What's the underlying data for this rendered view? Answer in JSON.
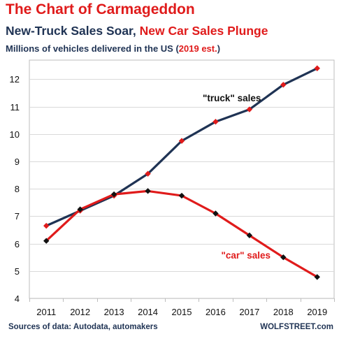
{
  "chart_data": {
    "type": "line",
    "title": "The Chart of Carmageddon",
    "subtitle_part1": "New-Truck Sales Soar, ",
    "subtitle_part2": "New Car Sales Plunge",
    "units_part1": "Millions of vehicles delivered in the US (",
    "units_part2": "2019 est.",
    "units_part3": ")",
    "x": [
      "2011",
      "2012",
      "2013",
      "2014",
      "2015",
      "2016",
      "2017",
      "2018",
      "2019"
    ],
    "y_ticks": [
      4,
      5,
      6,
      7,
      8,
      9,
      10,
      11,
      12
    ],
    "ylim": [
      4,
      12.7
    ],
    "grid": "horizontal",
    "series": [
      {
        "name": "\"truck\" sales",
        "color": "#1f3354",
        "marker_color": "#e01b1b",
        "values": [
          6.65,
          7.2,
          7.75,
          8.55,
          9.75,
          10.45,
          10.9,
          11.8,
          12.4
        ]
      },
      {
        "name": "\"car\" sales",
        "color": "#e01b1b",
        "marker_color": "#111111",
        "values": [
          6.1,
          7.25,
          7.8,
          7.92,
          7.75,
          7.1,
          6.3,
          5.5,
          4.78
        ]
      }
    ]
  },
  "footer": {
    "sources": "Sources of data: Autodata, automakers",
    "brand": "WOLFSTREET.com"
  }
}
